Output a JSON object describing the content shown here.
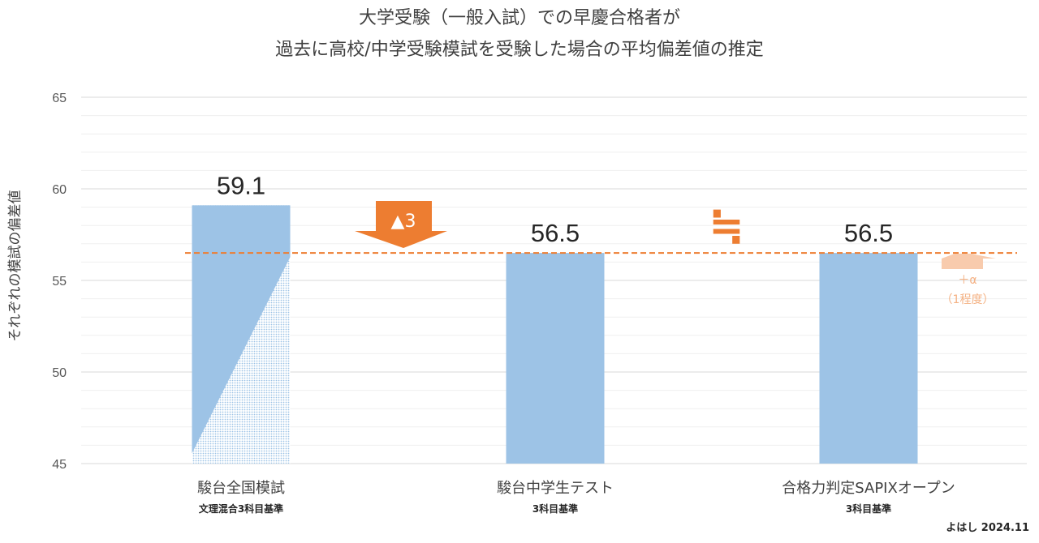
{
  "chart_data": {
    "type": "bar",
    "title_lines": [
      "大学受験（一般入試）での早慶合格者が",
      "過去に高校/中学受験模試を受験した場合の平均偏差値の推定"
    ],
    "ylabel": "それぞれの模試の偏差値",
    "ylim": [
      45,
      65
    ],
    "yticks": [
      45,
      50,
      55,
      60,
      65
    ],
    "grid": true,
    "categories": [
      "駿台全国模試",
      "駿台中学生テスト",
      "合格力判定SAPIXオープン"
    ],
    "subcategories": [
      "文理混合3科目基準",
      "3科目基準",
      "3科目基準"
    ],
    "values": [
      59.1,
      56.5,
      56.5
    ],
    "value_labels": [
      "59.1",
      "56.5",
      "56.5"
    ],
    "reference_line": 56.5,
    "annotations": {
      "down_arrow_label": "▲3",
      "approx_equal": "≒",
      "plus_alpha": "＋α",
      "plus_alpha_note": "（1程度）"
    },
    "credit": "よはし 2024.11"
  },
  "colors": {
    "bar": "#9dc3e6",
    "reference_line": "#ed7d31",
    "arrow": "#ed7d31",
    "plus_alpha": "#f8cbad",
    "grid": "#d9d9d9"
  }
}
